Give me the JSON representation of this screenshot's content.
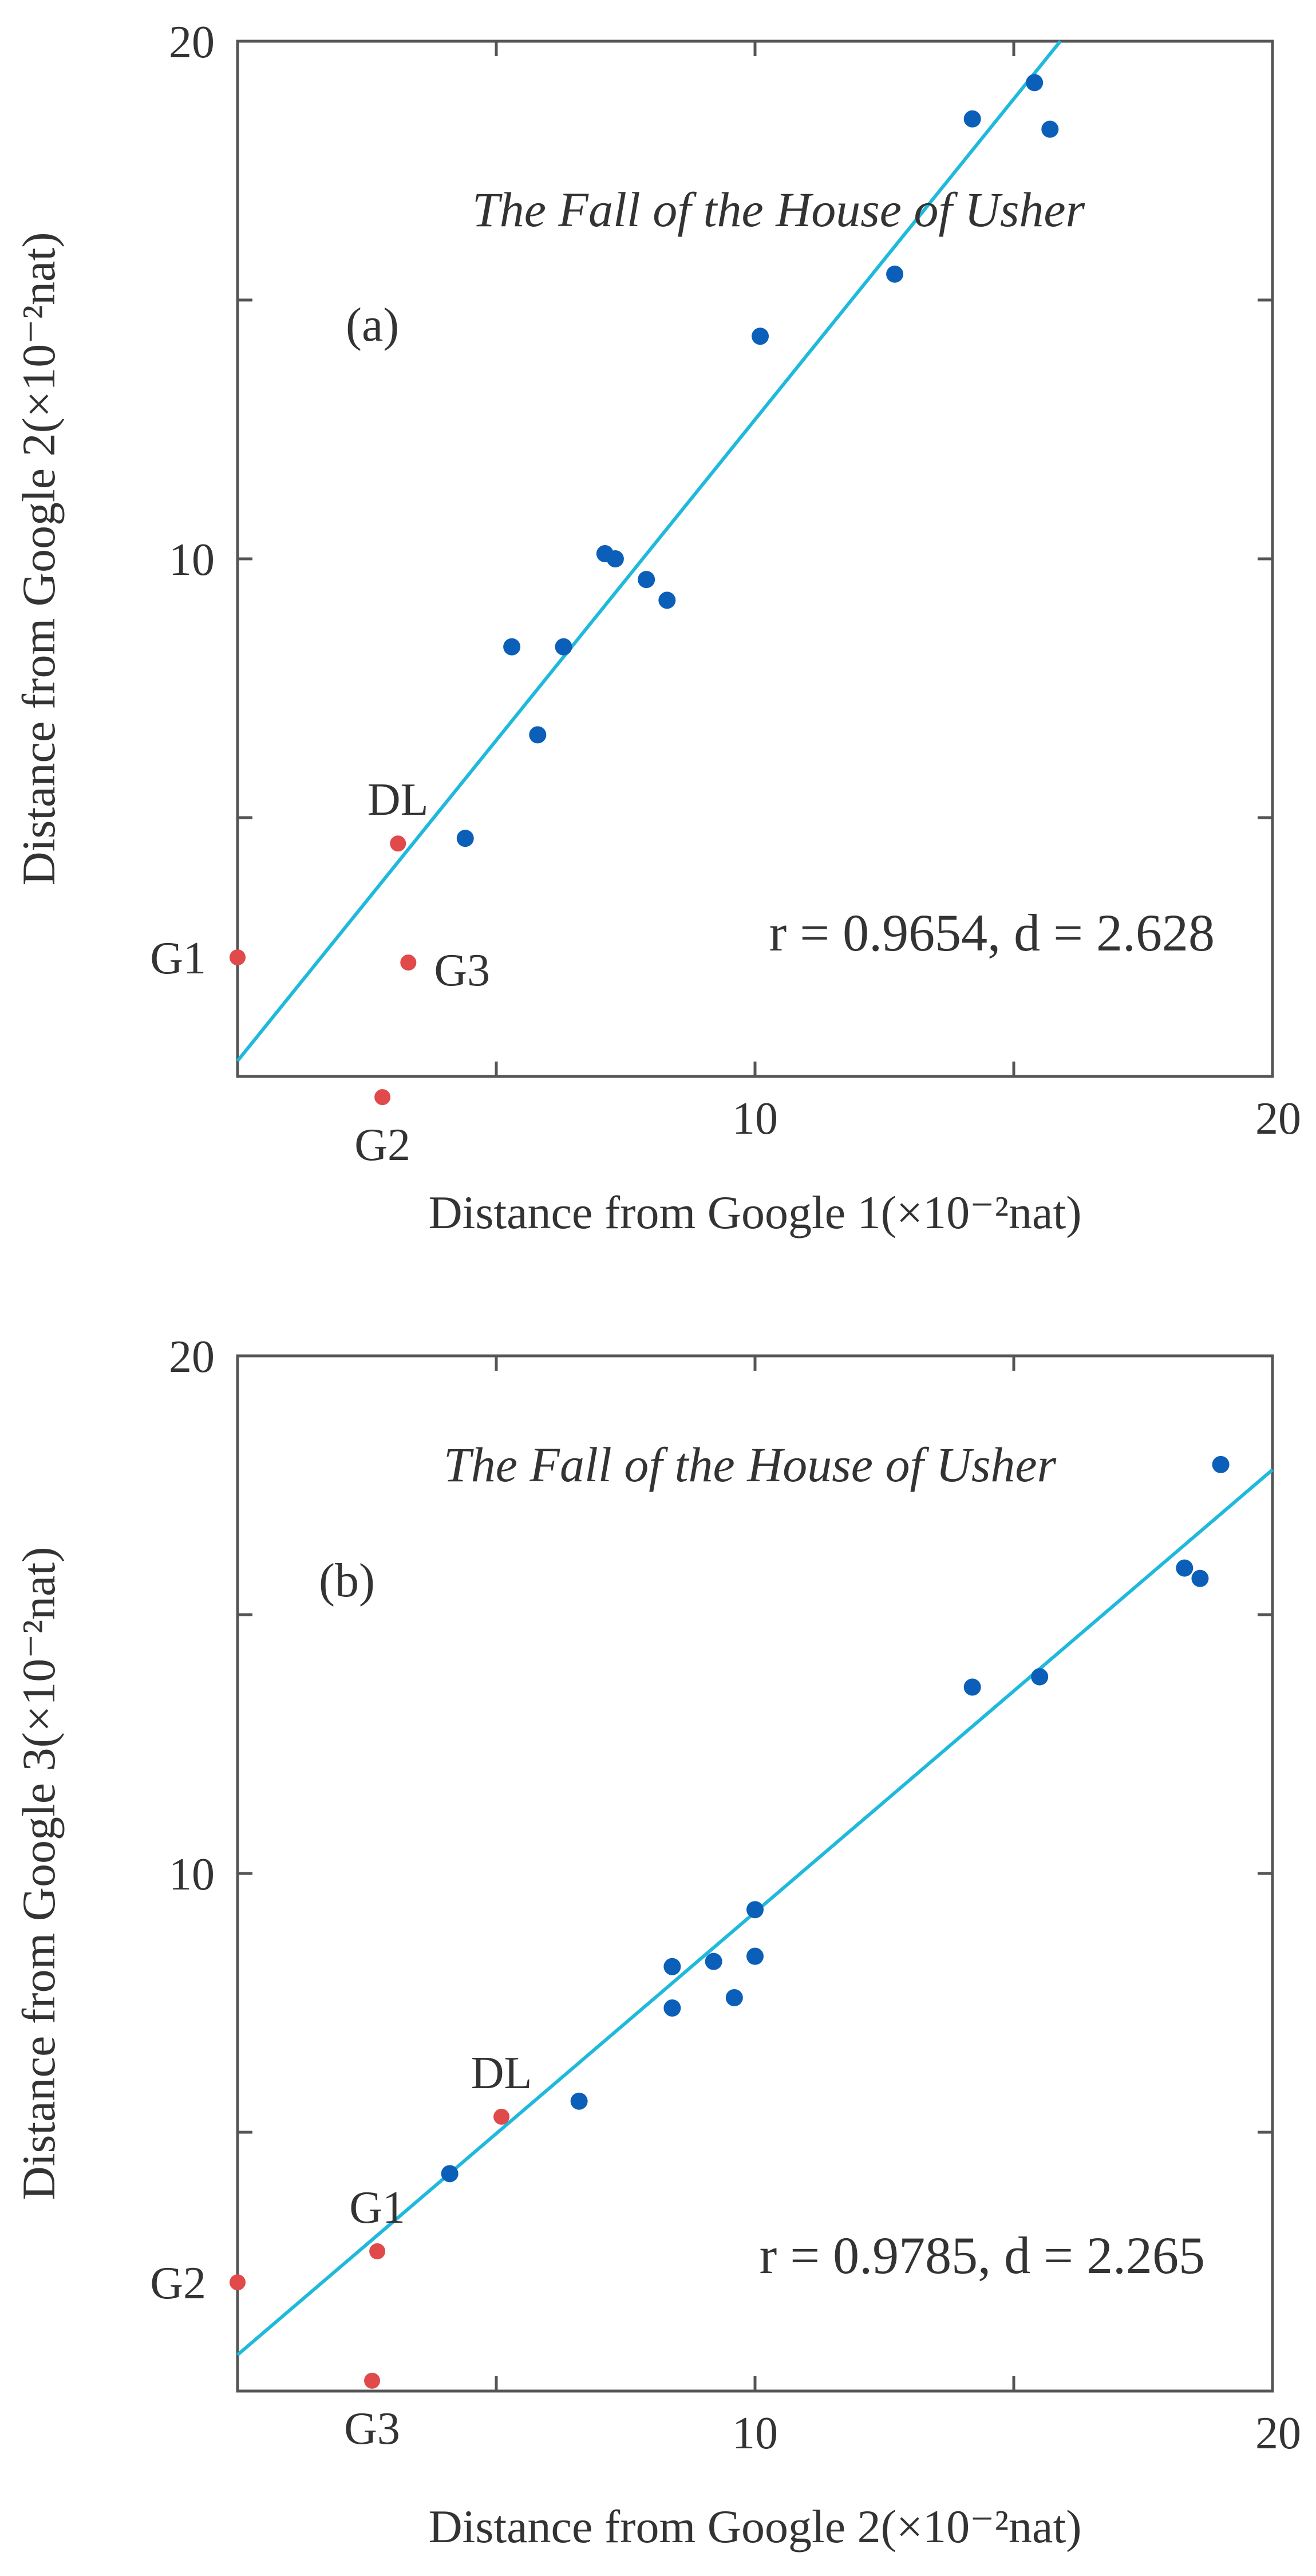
{
  "colors": {
    "point": "#0b5fb8",
    "reference_point": "#e04a4a",
    "fit_line": "#1fb9dc",
    "axis": "#555555"
  },
  "chart_data": [
    {
      "type": "scatter",
      "panel": "(a)",
      "title": "The Fall of the House of Usher",
      "xlabel": "Distance from Google 1(×10⁻²nat)",
      "ylabel": "Distance from Google 2(×10⁻²nat)",
      "xlim": [
        0,
        20
      ],
      "ylim": [
        0,
        20
      ],
      "x_ticks": [
        0,
        5,
        10,
        15,
        20
      ],
      "y_ticks": [
        0,
        5,
        10,
        15,
        20
      ],
      "x_tick_labels": [
        "",
        "",
        "10",
        "",
        "20"
      ],
      "y_tick_labels": [
        "",
        "",
        "10",
        "",
        "20"
      ],
      "grid": false,
      "stats": "r = 0.9654, d = 2.628",
      "fit_line": [
        [
          0.0,
          0.3
        ],
        [
          15.9,
          20.0
        ]
      ],
      "points": [
        [
          5.3,
          8.3
        ],
        [
          6.3,
          8.3
        ],
        [
          5.8,
          6.6
        ],
        [
          4.4,
          4.6
        ],
        [
          7.1,
          10.1
        ],
        [
          7.3,
          10.0
        ],
        [
          7.9,
          9.6
        ],
        [
          8.3,
          9.2
        ],
        [
          10.1,
          14.3
        ],
        [
          12.7,
          15.5
        ],
        [
          14.2,
          18.5
        ],
        [
          15.4,
          19.2
        ],
        [
          15.7,
          18.3
        ]
      ],
      "reference_points": [
        {
          "label": "G1",
          "x": 0.0,
          "y": 2.3
        },
        {
          "label": "G2",
          "x": 2.8,
          "y": -0.4
        },
        {
          "label": "G3",
          "x": 3.3,
          "y": 2.2
        },
        {
          "label": "DL",
          "x": 3.1,
          "y": 4.5
        }
      ]
    },
    {
      "type": "scatter",
      "panel": "(b)",
      "title": "The Fall of the House of Usher",
      "xlabel": "Distance from Google 2(×10⁻²nat)",
      "ylabel": "Distance from Google 3(×10⁻²nat)",
      "xlim": [
        0,
        20
      ],
      "ylim": [
        0,
        20
      ],
      "x_ticks": [
        0,
        5,
        10,
        15,
        20
      ],
      "y_ticks": [
        0,
        5,
        10,
        15,
        20
      ],
      "x_tick_labels": [
        "",
        "",
        "10",
        "",
        "20"
      ],
      "y_tick_labels": [
        "",
        "",
        "10",
        "",
        "20"
      ],
      "grid": false,
      "stats": "r = 0.9785, d = 2.265",
      "fit_line": [
        [
          0.0,
          0.7
        ],
        [
          20.0,
          17.8
        ]
      ],
      "points": [
        [
          4.1,
          4.2
        ],
        [
          6.6,
          5.6
        ],
        [
          8.4,
          8.2
        ],
        [
          8.4,
          7.4
        ],
        [
          9.2,
          8.3
        ],
        [
          9.6,
          7.6
        ],
        [
          10.0,
          8.4
        ],
        [
          10.0,
          9.3
        ],
        [
          14.2,
          13.6
        ],
        [
          15.5,
          13.8
        ],
        [
          18.3,
          15.9
        ],
        [
          18.6,
          15.7
        ],
        [
          19.0,
          17.9
        ]
      ],
      "reference_points": [
        {
          "label": "G2",
          "x": 0.0,
          "y": 2.1
        },
        {
          "label": "G3",
          "x": 2.6,
          "y": 0.2
        },
        {
          "label": "G1",
          "x": 2.7,
          "y": 2.7
        },
        {
          "label": "DL",
          "x": 5.1,
          "y": 5.3
        }
      ]
    }
  ]
}
